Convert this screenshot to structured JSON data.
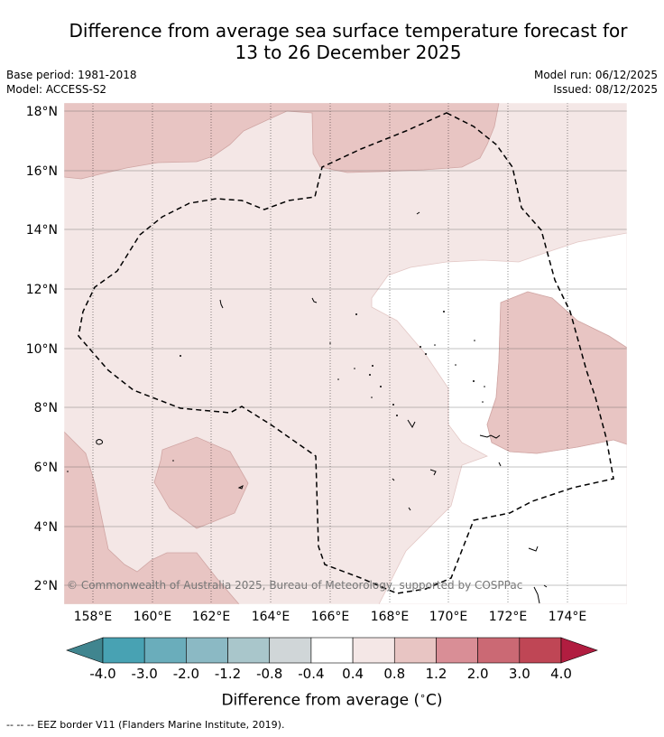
{
  "title": {
    "line1": "Difference from average sea surface temperature forecast for",
    "line2": "13 to 26 December 2025"
  },
  "meta": {
    "base_period": "Base period: 1981-2018",
    "model": "Model: ACCESS-S2",
    "model_run": "Model run: 06/12/2025",
    "issued": "Issued: 08/12/2025"
  },
  "map": {
    "lat_labels": [
      "18°N",
      "16°N",
      "14°N",
      "12°N",
      "10°N",
      "8°N",
      "6°N",
      "4°N",
      "2°N"
    ],
    "lon_labels": [
      "158°E",
      "160°E",
      "162°E",
      "164°E",
      "166°E",
      "168°E",
      "170°E",
      "172°E",
      "174°E"
    ],
    "copyright": "© Commonwealth of Australia 2025, Bureau of Meteorology, supported by COSPPac"
  },
  "colorbar": {
    "ticks": [
      "-4.0",
      "-3.0",
      "-2.0",
      "-1.2",
      "-0.8",
      "-0.4",
      "0.4",
      "0.8",
      "1.2",
      "2.0",
      "3.0",
      "4.0"
    ],
    "colors": [
      "#40858f",
      "#48a2b3",
      "#6aadbb",
      "#8bb9c4",
      "#a9c6cb",
      "#d0d6d8",
      "#ffffff",
      "#f4e7e6",
      "#e8c5c3",
      "#d98e96",
      "#cb6974",
      "#bf4655",
      "#b11d40"
    ],
    "title": "Difference from average (",
    "title_sup": "∘",
    "title_unit": "C)"
  },
  "footnote": "-- -- -- EEZ border V11 (Flanders Marine Institute, 2019)."
}
